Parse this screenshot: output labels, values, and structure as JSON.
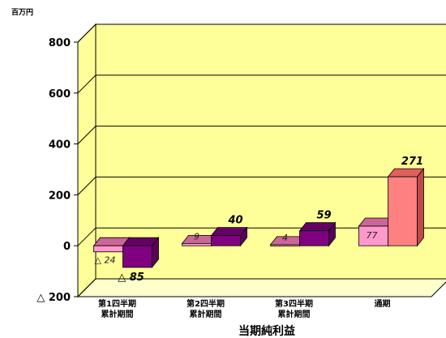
{
  "chart_data": {
    "type": "bar",
    "title": "当期純利益",
    "unit": "百万円",
    "categories": [
      [
        "第1四半期",
        "累計期間"
      ],
      [
        "第2四半期",
        "累計期間"
      ],
      [
        "第3四半期",
        "累計期間"
      ],
      [
        "通期"
      ]
    ],
    "series": [
      {
        "values": [
          -24,
          9,
          4,
          77
        ],
        "labels": [
          "△ 24",
          "9",
          "4",
          "77"
        ]
      },
      {
        "values": [
          -85,
          40,
          59,
          271
        ],
        "labels": [
          "△ 85",
          "40",
          "59",
          "271"
        ]
      }
    ],
    "ylim": [
      -200,
      800
    ],
    "yticks": [
      -200,
      0,
      200,
      400,
      600,
      800
    ],
    "ytick_labels": [
      "△ 200",
      "0",
      "200",
      "400",
      "600",
      "800"
    ],
    "grid": true
  },
  "colors": {
    "wall": "#FFFF99",
    "floor": "#FFFFCC",
    "prev_front": "#FF99CC",
    "prev_top": "#CC6699",
    "prev_side": "#CC6699",
    "cur_front": "#800080",
    "cur_top": "#660066",
    "cur_side": "#5A005A",
    "fy_cur_front": "#FF8080",
    "fy_cur_top": "#E06060",
    "fy_cur_side": "#C04848",
    "fy_prev_front": "#FF99CC",
    "fy_prev_top": "#CC6699"
  }
}
